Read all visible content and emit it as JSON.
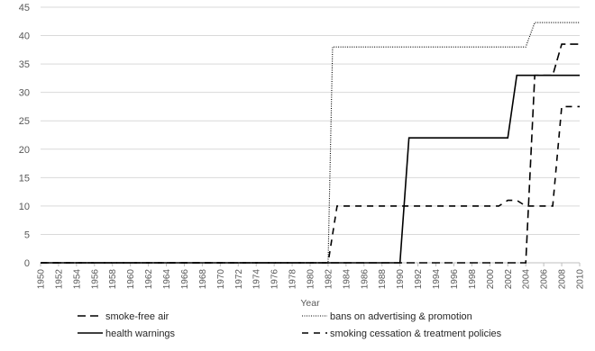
{
  "chart_data": {
    "type": "line",
    "title": "",
    "xlabel": "Year",
    "ylabel": "",
    "xlim": [
      1950,
      2010
    ],
    "ylim": [
      0,
      45
    ],
    "y_ticks": [
      0,
      5,
      10,
      15,
      20,
      25,
      30,
      35,
      40,
      45
    ],
    "x_ticks": [
      1950,
      1952,
      1954,
      1956,
      1958,
      1960,
      1962,
      1964,
      1966,
      1968,
      1970,
      1972,
      1974,
      1976,
      1978,
      1980,
      1982,
      1984,
      1986,
      1988,
      1990,
      1992,
      1994,
      1996,
      1998,
      2000,
      2002,
      2004,
      2006,
      2008,
      2010
    ],
    "grid": "horizontal",
    "legend_position": "bottom",
    "series": [
      {
        "name": "smoke-free air",
        "style": "long-dash",
        "points": [
          [
            1950,
            0
          ],
          [
            1982,
            0
          ],
          [
            2004,
            0
          ],
          [
            2005,
            33
          ],
          [
            2007,
            33
          ],
          [
            2008,
            38.5
          ],
          [
            2010,
            38.5
          ]
        ]
      },
      {
        "name": "bans on advertising & promotion",
        "style": "dotted",
        "points": [
          [
            1950,
            0
          ],
          [
            1982,
            0
          ],
          [
            1982.5,
            38
          ],
          [
            2004,
            38
          ],
          [
            2005,
            42.3
          ],
          [
            2010,
            42.3
          ]
        ]
      },
      {
        "name": "health warnings",
        "style": "solid",
        "points": [
          [
            1950,
            0
          ],
          [
            1990,
            0
          ],
          [
            1991,
            22
          ],
          [
            2002,
            22
          ],
          [
            2003,
            33
          ],
          [
            2010,
            33
          ]
        ]
      },
      {
        "name": "smoking cessation & treatment policies",
        "style": "short-dash",
        "points": [
          [
            1950,
            0
          ],
          [
            1982,
            0
          ],
          [
            1983,
            10
          ],
          [
            2001,
            10
          ],
          [
            2002,
            11
          ],
          [
            2003,
            11
          ],
          [
            2004,
            10
          ],
          [
            2007,
            10
          ],
          [
            2008,
            27.5
          ],
          [
            2010,
            27.5
          ]
        ]
      }
    ]
  }
}
